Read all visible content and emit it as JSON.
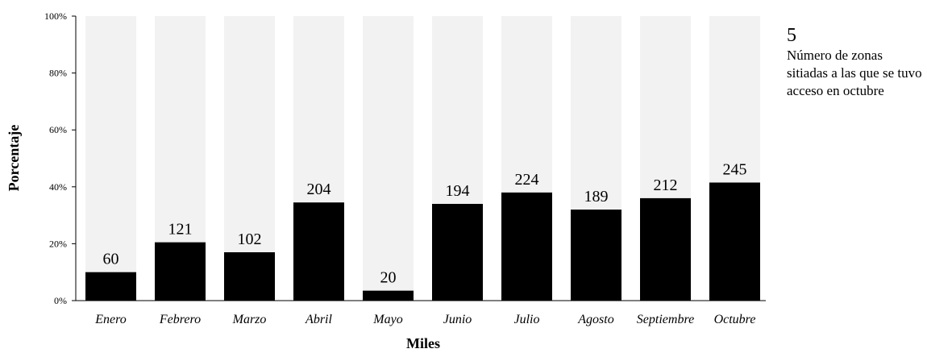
{
  "chart_data": {
    "type": "bar",
    "stacked": "percent",
    "categories": [
      "Enero",
      "Febrero",
      "Marzo",
      "Abril",
      "Mayo",
      "Junio",
      "Julio",
      "Agosto",
      "Septiembre",
      "Octubre"
    ],
    "values": [
      60,
      121,
      102,
      204,
      20,
      194,
      224,
      189,
      212,
      245
    ],
    "percent": [
      10,
      20.5,
      17,
      34.5,
      3.5,
      34,
      38,
      32,
      36,
      41.5
    ],
    "ylabel": "Porcentaje",
    "xlabel": "Miles",
    "ylim": [
      0,
      100
    ],
    "yticks": [
      "0%",
      "20%",
      "40%",
      "60%",
      "80%",
      "100%"
    ],
    "grid": false,
    "colors": {
      "filled": "#000000",
      "remainder": "#f2f2f2"
    }
  },
  "callout": {
    "number": "5",
    "text": "Número de zonas sitiadas a las que se tuvo acceso en octubre"
  }
}
